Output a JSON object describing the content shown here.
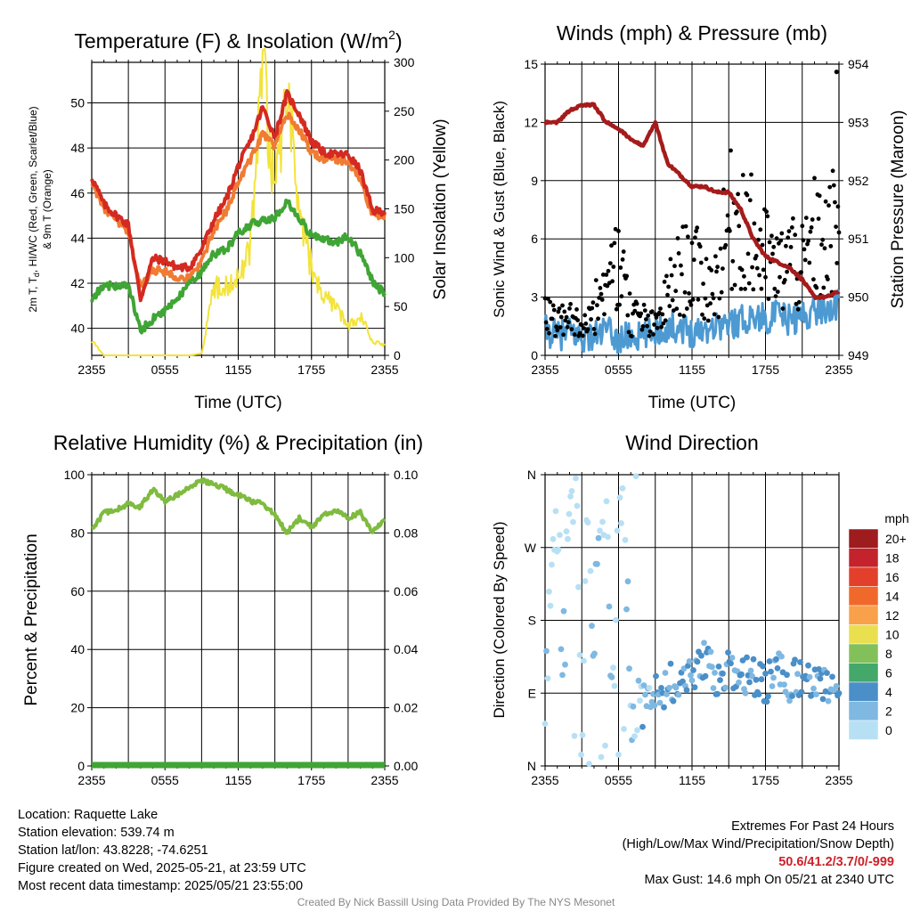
{
  "chart_data": [
    {
      "type": "line",
      "title": "Temperature (F) & Insolation (W/m²)",
      "xlabel": "Time (UTC)",
      "ylabel": "2m T, Td, HI/WC (Red, Green, Scarlet/Blue) & 9m T (Orange)",
      "y2label": "Solar Insolation (Yellow)",
      "x_ticks": [
        "2355",
        "0555",
        "1155",
        "1755",
        "2355"
      ],
      "ylim": [
        38.8,
        51.8
      ],
      "y_ticks": [
        40,
        42,
        44,
        46,
        48,
        50
      ],
      "y2lim": [
        0,
        300
      ],
      "y2_ticks": [
        0,
        50,
        100,
        150,
        200,
        250,
        300
      ],
      "grid": true,
      "x_hours": [
        0,
        1,
        2,
        3,
        4,
        5,
        6,
        7,
        8,
        9,
        10,
        11,
        12,
        13,
        14,
        15,
        16,
        17,
        18,
        19,
        20,
        21,
        22,
        23,
        24
      ],
      "series": [
        {
          "name": "2m T",
          "color": "#d42a21",
          "axis": "left",
          "values": [
            46.7,
            45.5,
            45.0,
            44.6,
            41.3,
            43.1,
            43.0,
            42.7,
            42.7,
            43.5,
            44.8,
            45.7,
            47.2,
            48.3,
            49.8,
            48.5,
            50.4,
            49.5,
            48.3,
            47.8,
            47.7,
            47.7,
            47.0,
            45.2,
            45.2
          ]
        },
        {
          "name": "9m T",
          "color": "#f07b33",
          "axis": "left",
          "values": [
            46.5,
            45.3,
            44.8,
            44.2,
            41.8,
            42.6,
            42.5,
            42.3,
            42.2,
            43.0,
            44.3,
            45.2,
            46.5,
            47.5,
            48.6,
            48.1,
            49.5,
            48.8,
            47.8,
            47.5,
            47.5,
            47.4,
            46.6,
            45.0,
            45.0
          ]
        },
        {
          "name": "Td",
          "color": "#3fa535",
          "axis": "left",
          "values": [
            41.3,
            41.9,
            41.9,
            41.9,
            39.9,
            40.4,
            40.8,
            41.3,
            42.0,
            42.5,
            43.3,
            43.5,
            44.2,
            44.6,
            44.8,
            44.9,
            45.6,
            44.9,
            44.1,
            44.0,
            43.8,
            44.1,
            43.3,
            42.1,
            41.5
          ]
        },
        {
          "name": "Solar Insolation",
          "color": "#f3e33b",
          "axis": "right",
          "values": [
            15,
            0,
            0,
            0,
            0,
            0,
            0,
            0,
            0,
            2,
            70,
            70,
            80,
            110,
            300,
            160,
            280,
            140,
            90,
            60,
            50,
            30,
            40,
            15,
            10
          ]
        }
      ]
    },
    {
      "type": "scatter",
      "title": "Winds (mph) & Pressure (mb)",
      "xlabel": "Time (UTC)",
      "ylabel": "Sonic Wind & Gust (Blue, Black)",
      "y2label": "Station Pressure (Maroon)",
      "x_ticks": [
        "2355",
        "0555",
        "1155",
        "1755",
        "2355"
      ],
      "ylim": [
        0,
        15
      ],
      "y_ticks": [
        0,
        3,
        6,
        9,
        12,
        15
      ],
      "y2lim": [
        949,
        954
      ],
      "y2_ticks": [
        949,
        950,
        951,
        952,
        953,
        954
      ],
      "grid": true,
      "x_hours": [
        0,
        1,
        2,
        3,
        4,
        5,
        6,
        7,
        8,
        9,
        10,
        11,
        12,
        13,
        14,
        15,
        16,
        17,
        18,
        19,
        20,
        21,
        22,
        23,
        24
      ],
      "series": [
        {
          "name": "Station Pressure",
          "color": "#a51b1b",
          "axis": "right",
          "values": [
            953.0,
            953.0,
            953.2,
            953.3,
            953.3,
            953.0,
            952.9,
            952.7,
            952.6,
            953.0,
            952.3,
            952.1,
            951.9,
            951.9,
            951.8,
            951.8,
            951.5,
            951.0,
            950.7,
            950.6,
            950.5,
            950.3,
            950.0,
            950.0,
            950.1
          ]
        },
        {
          "name": "Sonic Wind",
          "color": "#4d9ad2",
          "axis": "left",
          "values": [
            1.3,
            1.0,
            1.2,
            0.9,
            1.0,
            1.3,
            0.8,
            1.0,
            0.9,
            1.3,
            1.4,
            1.5,
            1.2,
            1.4,
            1.6,
            1.6,
            1.8,
            2.0,
            1.9,
            2.1,
            1.8,
            2.0,
            2.3,
            2.4,
            2.6
          ]
        },
        {
          "name": "Gust",
          "color": "#000000",
          "axis": "left",
          "values": [
            2.0,
            1.7,
            1.8,
            1.6,
            2.3,
            3.5,
            5.0,
            2.0,
            1.8,
            1.4,
            3.0,
            4.2,
            4.8,
            3.5,
            3.7,
            6.8,
            7.3,
            5.8,
            5.0,
            4.1,
            5.2,
            4.3,
            6.0,
            5.5,
            7.1
          ]
        }
      ],
      "max_gust": 14.6
    },
    {
      "type": "line",
      "title": "Relative Humidity (%) & Precipitation (in)",
      "xlabel": "",
      "ylabel": "Percent & Precipitation",
      "x_ticks": [
        "2355",
        "0555",
        "1155",
        "1755",
        "2355"
      ],
      "ylim": [
        0,
        100
      ],
      "y_ticks": [
        0,
        20,
        40,
        60,
        80,
        100
      ],
      "y2lim": [
        0,
        0.1
      ],
      "y2_ticks": [
        "0.00",
        "0.02",
        "0.04",
        "0.06",
        "0.08",
        "0.10"
      ],
      "grid": true,
      "x_hours": [
        0,
        1,
        2,
        3,
        4,
        5,
        6,
        7,
        8,
        9,
        10,
        11,
        12,
        13,
        14,
        15,
        16,
        17,
        18,
        19,
        20,
        21,
        22,
        23,
        24
      ],
      "series": [
        {
          "name": "Relative Humidity",
          "color": "#7ebb3f",
          "axis": "left",
          "values": [
            81,
            87,
            88,
            90,
            89,
            95,
            91,
            93,
            96,
            98,
            97,
            95,
            93,
            91,
            90,
            86,
            80,
            85,
            82,
            86,
            88,
            85,
            87,
            80,
            85
          ]
        },
        {
          "name": "Precipitation",
          "color": "#3fa535",
          "axis": "right",
          "values": [
            0,
            0,
            0,
            0,
            0,
            0,
            0,
            0,
            0,
            0,
            0,
            0,
            0,
            0,
            0,
            0,
            0,
            0,
            0,
            0,
            0,
            0,
            0,
            0,
            0
          ]
        }
      ]
    },
    {
      "type": "scatter",
      "title": "Wind Direction",
      "xlabel": "",
      "ylabel": "Direction (Colored By Speed)",
      "x_ticks": [
        "2355",
        "0555",
        "1155",
        "1755",
        "2355"
      ],
      "y_ticks": [
        "N",
        "E",
        "S",
        "W",
        "N"
      ],
      "ylim": [
        0,
        360
      ],
      "grid": true,
      "legend_title": "mph",
      "legend_labels": [
        "20+",
        "18",
        "16",
        "14",
        "12",
        "10",
        "8",
        "6",
        "4",
        "2",
        "0"
      ],
      "legend_colors": [
        "#9e1b1e",
        "#c5232b",
        "#e2402b",
        "#f0692a",
        "#f8a14a",
        "#eadf4f",
        "#82c15a",
        "#44a86b",
        "#4a8fc8",
        "#7fb8e1",
        "#b7e0f5"
      ],
      "x_hours": [
        0,
        0.5,
        1,
        1.5,
        2,
        2.5,
        3,
        3.5,
        4,
        4.5,
        5,
        5.5,
        6,
        6.5,
        7,
        8,
        9,
        10,
        11,
        12,
        13,
        14,
        15,
        16,
        17,
        18,
        19,
        20,
        21,
        22,
        23,
        24
      ],
      "directions": [
        110,
        240,
        300,
        120,
        350,
        355,
        20,
        350,
        150,
        330,
        340,
        40,
        350,
        355,
        20,
        80,
        90,
        100,
        110,
        120,
        130,
        110,
        120,
        115,
        110,
        100,
        115,
        105,
        110,
        95,
        100,
        105
      ],
      "speeds": [
        1,
        0,
        0,
        1,
        0,
        0,
        1,
        0,
        2,
        0,
        0,
        1,
        0,
        0,
        1,
        2,
        2,
        3,
        3,
        3,
        3,
        3,
        4,
        3,
        3,
        4,
        3,
        3,
        4,
        3,
        3,
        3
      ]
    }
  ],
  "labels": {
    "temp_title": "Temperature (F) & Insolation (W/m",
    "temp_title_sup": "2",
    "temp_title_end": ")",
    "winds_title": "Winds (mph) & Pressure (mb)",
    "rh_title": "Relative Humidity (%) & Precipitation (in)",
    "wd_title": "Wind Direction",
    "time_label": "Time (UTC)",
    "temp_ylabel_line1": "2m T, T",
    "temp_ylabel_sub": "d",
    "temp_ylabel_line1b": ", HI/WC (Red, Green, Scarlet/Blue)",
    "temp_ylabel_line2": "& 9m T (Orange)",
    "solar_ylabel": "Solar Insolation (Yellow)",
    "wind_ylabel": "Sonic Wind & Gust (Blue, Black)",
    "pressure_ylabel": "Station Pressure (Maroon)",
    "rh_ylabel": "Percent & Precipitation",
    "wd_ylabel": "Direction (Colored By Speed)",
    "legend_unit": "mph"
  },
  "station": {
    "location": "Location: Raquette Lake",
    "elevation": "Station elevation: 539.74 m",
    "latlon": "Station lat/lon: 43.8228; -74.6251",
    "created": "Figure created on Wed, 2025-05-21, at 23:59 UTC",
    "recent": "Most recent data timestamp: 2025/05/21 23:55:00"
  },
  "extremes": {
    "heading": "Extremes For Past 24 Hours",
    "subheading": "(High/Low/Max Wind/Precipitation/Snow Depth)",
    "values": "50.6/41.2/3.7/0/-999",
    "max_gust": "Max Gust: 14.6 mph On 05/21 at 2340 UTC"
  },
  "credit": "Created By Nick Bassill Using Data Provided By The NYS Mesonet"
}
